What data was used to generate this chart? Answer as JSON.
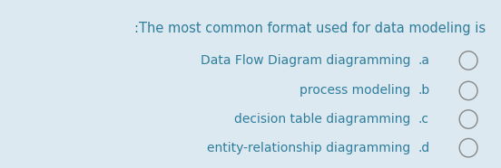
{
  "background_color": "#dce9f0",
  "title": ":The most common format used for data modeling is",
  "title_color": "#2e7d9c",
  "title_fontsize": 10.5,
  "options": [
    {
      "label": "Data Flow Diagram diagramming",
      "key": ".a"
    },
    {
      "label": "process modeling",
      "key": ".b"
    },
    {
      "label": "decision table diagramming",
      "key": ".c"
    },
    {
      "label": "entity-relationship diagramming",
      "key": ".d"
    }
  ],
  "option_color": "#2e7d9c",
  "option_fontsize": 10,
  "circle_edge_color": "#888888",
  "fig_width": 5.52,
  "fig_height": 1.86,
  "dpi": 100
}
